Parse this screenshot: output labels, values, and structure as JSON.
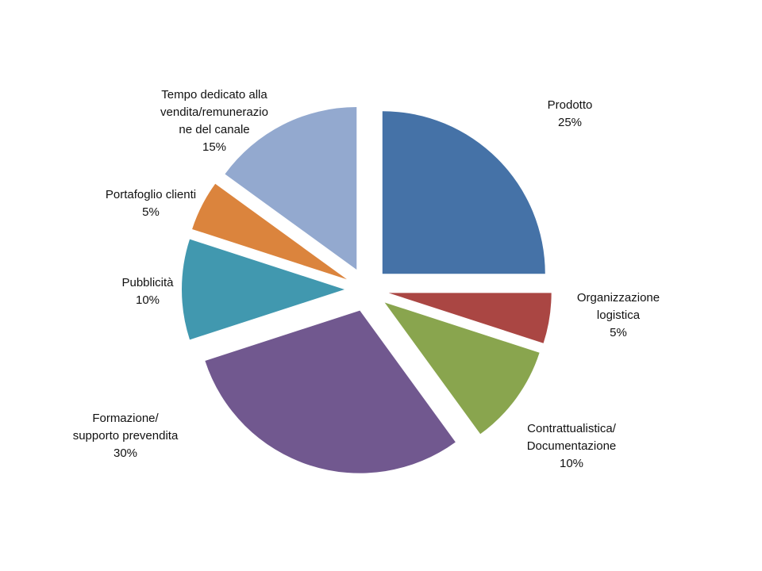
{
  "chart_data": {
    "type": "pie",
    "title": "",
    "start_angle_deg": 0,
    "direction": "clockwise",
    "exploded": true,
    "legend": "none",
    "slices": [
      {
        "label_lines": [
          "Prodotto"
        ],
        "value": 25,
        "value_label": "25%",
        "color": "#4572A7"
      },
      {
        "label_lines": [
          "Organizzazione",
          "logistica"
        ],
        "value": 5,
        "value_label": "5%",
        "color": "#AA4643"
      },
      {
        "label_lines": [
          "Contrattualistica/",
          "Documentazione"
        ],
        "value": 10,
        "value_label": "10%",
        "color": "#89A54E"
      },
      {
        "label_lines": [
          "Formazione/",
          "supporto prevendita"
        ],
        "value": 30,
        "value_label": "30%",
        "color": "#71588F"
      },
      {
        "label_lines": [
          "Pubblicità"
        ],
        "value": 10,
        "value_label": "10%",
        "color": "#4198AF"
      },
      {
        "label_lines": [
          "Portafoglio clienti"
        ],
        "value": 5,
        "value_label": "5%",
        "color": "#DB843D"
      },
      {
        "label_lines": [
          "Tempo dedicato alla",
          "vendita/remunerazio",
          "ne del canale"
        ],
        "value": 15,
        "value_label": "15%",
        "color": "#93A9CF"
      }
    ]
  }
}
